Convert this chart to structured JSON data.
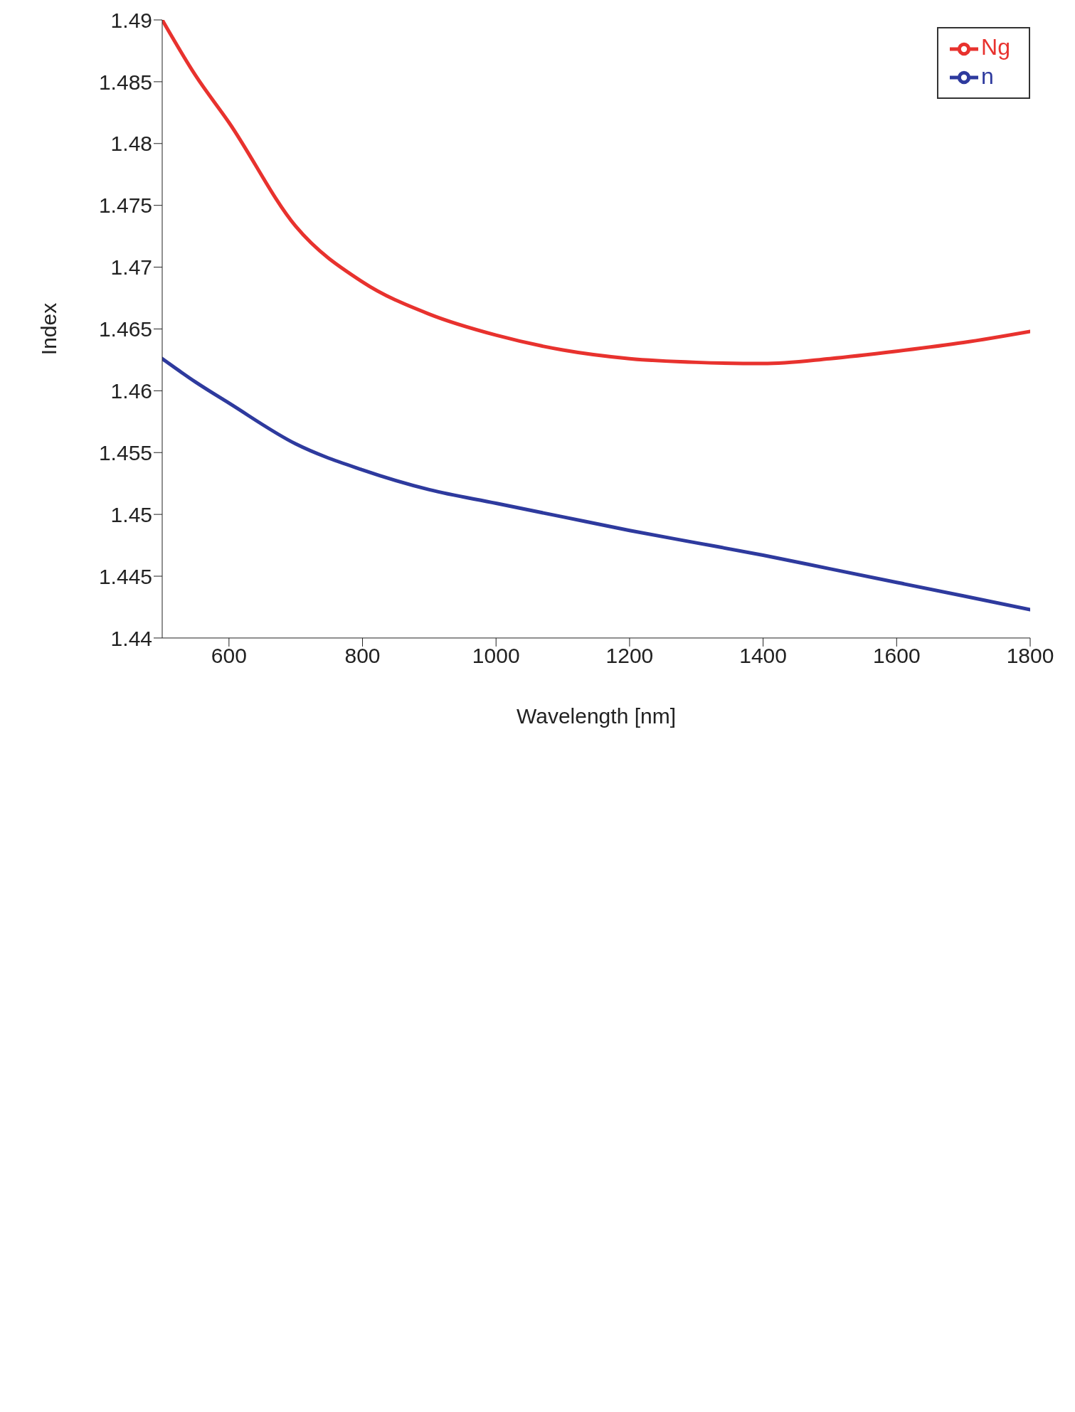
{
  "chart_data": {
    "type": "line",
    "xlabel": "Wavelength [nm]",
    "ylabel": "Index",
    "x": [
      500,
      550,
      600,
      700,
      800,
      900,
      1000,
      1100,
      1200,
      1300,
      1400,
      1500,
      1600,
      1700,
      1800
    ],
    "series": [
      {
        "name": "n",
        "color": "#2e3a9e",
        "values": [
          1.4626,
          1.4607,
          1.459,
          1.4557,
          1.4536,
          1.452,
          1.4509,
          1.4498,
          1.4487,
          1.4477,
          1.4467,
          1.4456,
          1.4445,
          1.4434,
          1.4423
        ]
      },
      {
        "name": "Ng",
        "color": "#e8322e",
        "values": [
          1.49,
          1.4855,
          1.4817,
          1.4733,
          1.4688,
          1.4662,
          1.4645,
          1.4633,
          1.4626,
          1.4623,
          1.4622,
          1.4626,
          1.4632,
          1.4639,
          1.4648
        ]
      }
    ],
    "xlim": [
      500,
      1800
    ],
    "xticks": [
      600,
      800,
      1000,
      1200,
      1400,
      1600,
      1800
    ],
    "ylim": [
      1.44,
      1.49
    ],
    "yticks": [
      1.44,
      1.445,
      1.45,
      1.455,
      1.46,
      1.465,
      1.47,
      1.475,
      1.48,
      1.485,
      1.49
    ],
    "grid": false,
    "legend": "top right",
    "marker": "none",
    "line_style": "solid"
  }
}
